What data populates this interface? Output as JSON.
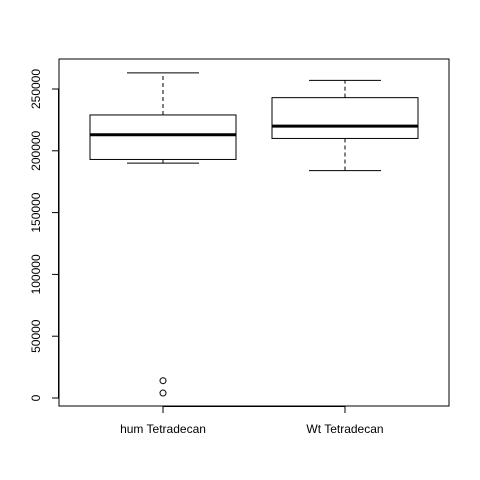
{
  "chart_data": {
    "type": "boxplot",
    "categories": [
      "hum Tetradecan",
      "Wt Tetradecan"
    ],
    "ylim": [
      0,
      270000
    ],
    "yticks": [
      0,
      50000,
      100000,
      150000,
      200000,
      250000
    ],
    "ytick_labels": [
      "0",
      "50000",
      "100000",
      "150000",
      "200000",
      "250000"
    ],
    "grid": false,
    "boxes": [
      {
        "name": "hum Tetradecan",
        "whisker_low": 190000,
        "q1": 193000,
        "median": 213000,
        "q3": 229000,
        "whisker_high": 263000,
        "outliers": [
          14000,
          4000
        ]
      },
      {
        "name": "Wt Tetradecan",
        "whisker_low": 184000,
        "q1": 210000,
        "median": 220000,
        "q3": 243000,
        "whisker_high": 257000,
        "outliers": []
      }
    ]
  }
}
